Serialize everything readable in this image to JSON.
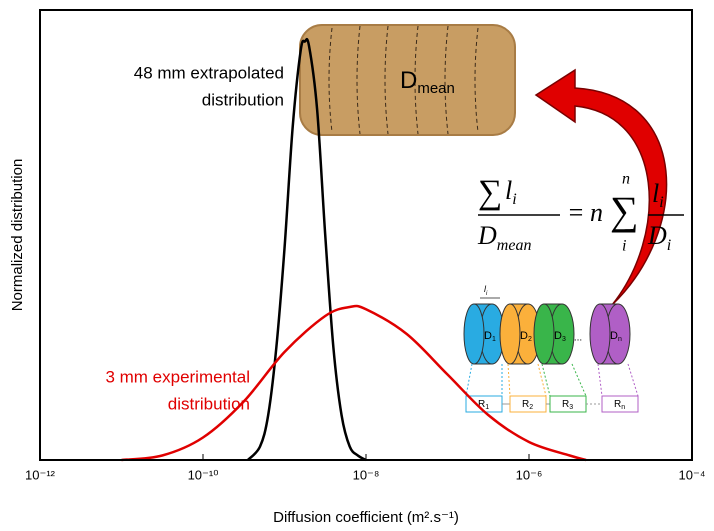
{
  "chart_data": {
    "type": "line",
    "x_label": "Diffusion coefficient (m².s⁻¹)",
    "y_label": "Normalized distribution",
    "xscale": "log",
    "xlim": [
      1e-12,
      0.0001
    ],
    "xticks": [
      {
        "value": 1e-12,
        "label": "10⁻¹²"
      },
      {
        "value": 1e-10,
        "label": "10⁻¹⁰"
      },
      {
        "value": 1e-08,
        "label": "10⁻⁸"
      },
      {
        "value": 1e-06,
        "label": "10⁻⁶"
      },
      {
        "value": 0.0001,
        "label": "10⁻⁴"
      }
    ],
    "ylim": [
      0,
      1
    ],
    "series": [
      {
        "label_lines": [
          "48 mm extrapolated",
          "distribution"
        ],
        "color": "#000000",
        "x": [
          3.55e-10,
          5.01e-10,
          6.31e-10,
          7.94e-10,
          1e-09,
          1.26e-09,
          1.58e-09,
          1.78e-09,
          2e-09,
          2.51e-09,
          3.16e-09,
          3.98e-09,
          5.01e-09,
          6.31e-09,
          7.94e-09,
          1e-08
        ],
        "values": [
          0,
          0.03,
          0.1,
          0.25,
          0.47,
          0.74,
          0.91,
          0.93,
          0.92,
          0.78,
          0.5,
          0.25,
          0.1,
          0.03,
          0.01,
          0
        ]
      },
      {
        "label_lines": [
          "3 mm experimental",
          "distribution"
        ],
        "color": "#e00000",
        "x": [
          1e-11,
          3.16e-11,
          1e-10,
          3.16e-10,
          1e-09,
          3.16e-09,
          6.31e-09,
          1e-08,
          3.16e-08,
          1e-07,
          3.16e-07,
          1e-06,
          3.16e-06,
          5.01e-06
        ],
        "values": [
          0,
          0.01,
          0.05,
          0.13,
          0.24,
          0.32,
          0.34,
          0.335,
          0.28,
          0.19,
          0.1,
          0.04,
          0.01,
          0
        ]
      }
    ],
    "illustration": {
      "cork_label": {
        "base": "D",
        "sub": "mean"
      },
      "equation": {
        "sum": "∑",
        "num": "l",
        "num_sub": "i",
        "den": "D",
        "den_sub": "mean",
        "eq": "=",
        "n": "n",
        "sum_top": "n",
        "sum_bottom": "i",
        "frac_num": "l",
        "frac_num_sub": "i",
        "frac_den": "D",
        "frac_den_sub": "i"
      },
      "length_label": {
        "base": "l",
        "sub": "i"
      },
      "cylinders": [
        {
          "base": "D",
          "sub": "1"
        },
        {
          "base": "D",
          "sub": "2"
        },
        {
          "base": "D",
          "sub": "3"
        },
        {
          "base": "D",
          "sub": "n"
        }
      ],
      "resistors": [
        {
          "base": "R",
          "sub": "1"
        },
        {
          "base": "R",
          "sub": "2"
        },
        {
          "base": "R",
          "sub": "3"
        },
        {
          "base": "R",
          "sub": "n"
        }
      ],
      "ellipsis": "..."
    }
  }
}
